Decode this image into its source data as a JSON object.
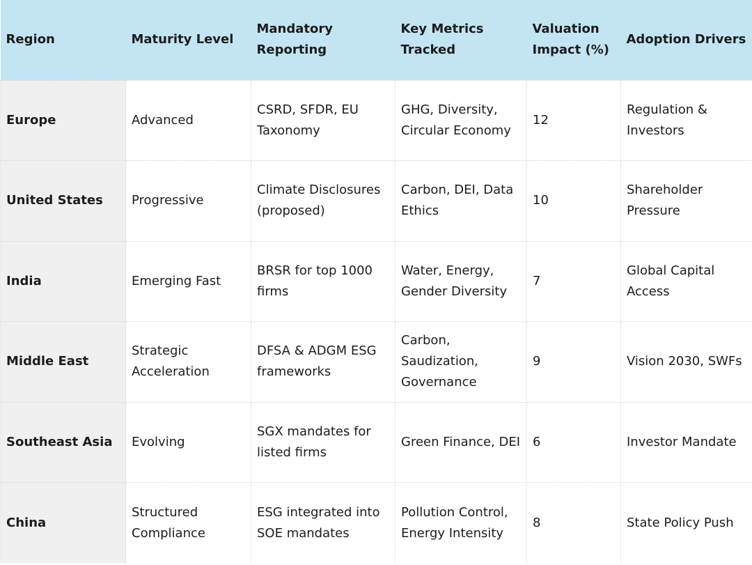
{
  "table": {
    "headers": [
      "Region",
      "Maturity Level",
      "Mandatory Reporting",
      "Key Metrics Tracked",
      "Valuation Impact (%)",
      "Adoption Drivers"
    ],
    "rows": [
      [
        "Europe",
        "Advanced",
        "CSRD, SFDR, EU Taxonomy",
        "GHG, Diversity, Circular Economy",
        "12",
        "Regulation & Investors"
      ],
      [
        "United States",
        "Progressive",
        "Climate Disclosures (proposed)",
        "Carbon, DEI, Data Ethics",
        "10",
        "Shareholder Pressure"
      ],
      [
        "India",
        "Emerging Fast",
        "BRSR for top 1000 firms",
        "Water, Energy, Gender Diversity",
        "7",
        "Global Capital Access"
      ],
      [
        "Middle East",
        "Strategic Acceleration",
        "DFSA & ADGM ESG frameworks",
        "Carbon, Saudization, Governance",
        "9",
        "Vision 2030, SWFs"
      ],
      [
        "Southeast Asia",
        "Evolving",
        "SGX mandates for listed firms",
        "Green Finance, DEI",
        "6",
        "Investor Mandate"
      ],
      [
        "China",
        "Structured Compliance",
        "ESG integrated into SOE mandates",
        "Pollution Control, Energy Intensity",
        "8",
        "State Policy Push"
      ]
    ]
  },
  "colors": {
    "header_background": "#c3e4f3",
    "first_column_background": "#f0f0f0",
    "cell_border": "#d6d6d6"
  }
}
